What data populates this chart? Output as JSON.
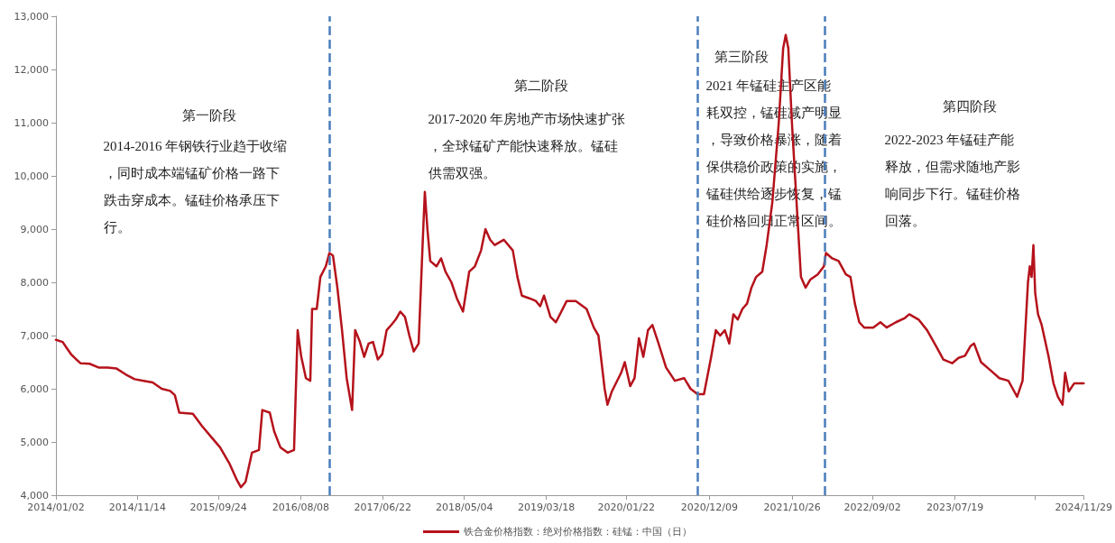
{
  "chart_data": {
    "type": "line",
    "legend": "bottom",
    "grid": false,
    "marker": "none",
    "line_style": "solid",
    "xlim": [
      "2014-01-02",
      "2024-11-29"
    ],
    "xticks": [
      {
        "value": "2014-01-02",
        "label": "2014/01/02"
      },
      {
        "value": "2014-11-14",
        "label": "2014/11/14"
      },
      {
        "value": "2015-09-24",
        "label": "2015/09/24"
      },
      {
        "value": "2016-08-08",
        "label": "2016/08/08"
      },
      {
        "value": "2017-06-22",
        "label": "2017/06/22"
      },
      {
        "value": "2018-05-04",
        "label": "2018/05/04"
      },
      {
        "value": "2019-03-18",
        "label": "2019/03/18"
      },
      {
        "value": "2020-01-22",
        "label": "2020/01/22"
      },
      {
        "value": "2020-12-09",
        "label": "2020/12/09"
      },
      {
        "value": "2021-10-26",
        "label": "2021/10/26"
      },
      {
        "value": "2022-09-02",
        "label": "2022/09/02"
      },
      {
        "value": "2023-07-19",
        "label": "2023/07/19"
      },
      {
        "value": "2024-05-25",
        "label": null
      },
      {
        "value": "2024-11-29",
        "label": "2024/11/29"
      }
    ],
    "ylim": [
      4000,
      13000
    ],
    "yticks": [
      {
        "value": 4000,
        "label": "4,000"
      },
      {
        "value": 5000,
        "label": "5,000"
      },
      {
        "value": 6000,
        "label": "6,000"
      },
      {
        "value": 7000,
        "label": "7,000"
      },
      {
        "value": 8000,
        "label": "8,000"
      },
      {
        "value": 9000,
        "label": "9,000"
      },
      {
        "value": 10000,
        "label": "10,000"
      },
      {
        "value": 11000,
        "label": "11,000"
      },
      {
        "value": 12000,
        "label": "12,000"
      },
      {
        "value": 13000,
        "label": "13,000"
      }
    ],
    "ref_lines": [
      {
        "axis": "x",
        "value": "2016-11-27",
        "color": "#4a7ebb",
        "line_style": "dashed"
      },
      {
        "axis": "x",
        "value": "2020-10-24",
        "color": "#4a7ebb",
        "line_style": "dashed"
      },
      {
        "axis": "x",
        "value": "2022-03-02",
        "color": "#4a7ebb",
        "line_style": "dashed"
      }
    ],
    "annotations": [
      "第一阶段",
      "2014-2016 年钢铁行业趋于收缩，同时成本端锰矿价格一路下跌击穿成本。锰硅价格承压下行。",
      "第二阶段",
      "2017-2020 年房地产市场快速扩张，全球锰矿产能快速释放。锰硅供需双强。",
      "第三阶段",
      "2021 年锰硅主产区能耗双控，锰硅减产明显，导致价格暴涨，随着保供稳价政策的实施，锰硅供给逐步恢复，锰硅价格回归正常区间。",
      "第四阶段",
      "2022-2023 年锰硅产能释放，但需求随地产影响同步下行。锰硅价格回落。"
    ],
    "series": [
      {
        "name": "铁合金价格指数：绝对价格指数：硅锰：中国（日）",
        "color": "#b5121b",
        "x": [
          "2014-01-02",
          "2014-01-28",
          "2014-02-15",
          "2014-03-03",
          "2014-03-20",
          "2014-04-07",
          "2014-05-12",
          "2014-06-16",
          "2014-07-21",
          "2014-08-25",
          "2014-09-29",
          "2014-11-03",
          "2014-12-08",
          "2015-01-12",
          "2015-02-16",
          "2015-03-21",
          "2015-04-08",
          "2015-04-25",
          "2015-06-17",
          "2015-07-22",
          "2015-08-26",
          "2015-09-30",
          "2015-11-05",
          "2015-12-03",
          "2015-12-20",
          "2016-01-07",
          "2016-02-01",
          "2016-02-28",
          "2016-03-12",
          "2016-04-10",
          "2016-04-27",
          "2016-05-21",
          "2016-06-18",
          "2016-07-13",
          "2016-07-27",
          "2016-08-10",
          "2016-08-28",
          "2016-09-14",
          "2016-09-21",
          "2016-10-09",
          "2016-10-23",
          "2016-11-13",
          "2016-11-27",
          "2016-12-11",
          "2016-12-28",
          "2017-01-15",
          "2017-02-02",
          "2017-02-23",
          "2017-03-07",
          "2017-03-24",
          "2017-04-11",
          "2017-04-28",
          "2017-05-15",
          "2017-06-03",
          "2017-06-20",
          "2017-07-07",
          "2017-07-25",
          "2017-08-11",
          "2017-08-29",
          "2017-09-16",
          "2017-10-03",
          "2017-10-20",
          "2017-11-08",
          "2017-11-25",
          "2017-12-02",
          "2017-12-12",
          "2017-12-23",
          "2018-01-16",
          "2018-02-03",
          "2018-02-20",
          "2018-03-15",
          "2018-04-05",
          "2018-04-29",
          "2018-05-23",
          "2018-06-14",
          "2018-07-08",
          "2018-07-25",
          "2018-08-12",
          "2018-08-30",
          "2018-10-04",
          "2018-11-08",
          "2018-11-26",
          "2018-12-13",
          "2019-01-11",
          "2019-02-05",
          "2019-02-22",
          "2019-03-09",
          "2019-04-03",
          "2019-04-24",
          "2019-06-05",
          "2019-07-10",
          "2019-08-21",
          "2019-09-18",
          "2019-10-06",
          "2019-10-30",
          "2019-11-10",
          "2019-11-27",
          "2020-01-02",
          "2020-01-16",
          "2020-02-06",
          "2020-02-23",
          "2020-03-11",
          "2020-03-28",
          "2020-04-15",
          "2020-05-02",
          "2020-05-26",
          "2020-06-24",
          "2020-07-28",
          "2020-09-02",
          "2020-09-27",
          "2020-10-24",
          "2020-11-18",
          "2020-12-16",
          "2021-01-03",
          "2021-01-20",
          "2021-02-07",
          "2021-02-24",
          "2021-03-12",
          "2021-03-29",
          "2021-04-16",
          "2021-05-04",
          "2021-05-21",
          "2021-06-08",
          "2021-07-02",
          "2021-07-19",
          "2021-08-10",
          "2021-09-04",
          "2021-09-21",
          "2021-10-01",
          "2021-10-11",
          "2021-10-25",
          "2021-11-12",
          "2021-11-29",
          "2021-12-17",
          "2022-01-04",
          "2022-02-02",
          "2022-02-26",
          "2022-03-06",
          "2022-03-30",
          "2022-04-24",
          "2022-05-22",
          "2022-06-09",
          "2022-06-26",
          "2022-07-13",
          "2022-08-01",
          "2022-09-05",
          "2022-10-03",
          "2022-10-27",
          "2022-12-02",
          "2023-01-06",
          "2023-01-23",
          "2023-02-28",
          "2023-04-02",
          "2023-05-07",
          "2023-06-04",
          "2023-07-08",
          "2023-08-02",
          "2023-08-27",
          "2023-09-17",
          "2023-10-01",
          "2023-10-28",
          "2023-12-03",
          "2024-01-07",
          "2024-02-11",
          "2024-02-28",
          "2024-03-16",
          "2024-04-06",
          "2024-04-27",
          "2024-05-04",
          "2024-05-11",
          "2024-05-18",
          "2024-05-25",
          "2024-06-05",
          "2024-06-19",
          "2024-07-16",
          "2024-08-04",
          "2024-08-21",
          "2024-09-08",
          "2024-09-18",
          "2024-10-02",
          "2024-10-23",
          "2024-11-16",
          "2024-11-29"
        ],
        "values": [
          6920,
          6880,
          6750,
          6640,
          6560,
          6480,
          6470,
          6400,
          6400,
          6380,
          6270,
          6180,
          6150,
          6120,
          6000,
          5960,
          5880,
          5550,
          5530,
          5300,
          5100,
          4900,
          4600,
          4300,
          4150,
          4250,
          4800,
          4850,
          5600,
          5550,
          5200,
          4900,
          4800,
          4850,
          7100,
          6600,
          6200,
          6150,
          7500,
          7500,
          8100,
          8300,
          8550,
          8500,
          7900,
          7100,
          6200,
          5600,
          7100,
          6900,
          6600,
          6850,
          6880,
          6550,
          6650,
          7100,
          7200,
          7300,
          7450,
          7350,
          7000,
          6700,
          6850,
          8900,
          9700,
          9000,
          8400,
          8300,
          8450,
          8200,
          8000,
          7700,
          7450,
          8200,
          8300,
          8600,
          9000,
          8800,
          8700,
          8800,
          8600,
          8100,
          7750,
          7700,
          7650,
          7550,
          7750,
          7350,
          7250,
          7650,
          7650,
          7500,
          7150,
          7000,
          6000,
          5700,
          5950,
          6300,
          6500,
          6050,
          6200,
          6950,
          6600,
          7100,
          7200,
          6850,
          6400,
          6150,
          6200,
          6000,
          5900,
          5900,
          6600,
          7100,
          7000,
          7100,
          6850,
          7400,
          7300,
          7500,
          7600,
          7900,
          8100,
          8200,
          8700,
          9500,
          11000,
          12400,
          12650,
          12400,
          11000,
          9500,
          8100,
          7900,
          8050,
          8150,
          8300,
          8550,
          8450,
          8400,
          8150,
          8100,
          7600,
          7250,
          7150,
          7150,
          7250,
          7150,
          7250,
          7330,
          7400,
          7300,
          7100,
          6800,
          6550,
          6480,
          6580,
          6620,
          6800,
          6850,
          6500,
          6350,
          6200,
          6150,
          6000,
          5850,
          6150,
          8000,
          8300,
          8100,
          8700,
          7800,
          7400,
          7200,
          6600,
          6100,
          5850,
          5700,
          6300,
          5950,
          6100,
          6100,
          6100
        ]
      }
    ]
  }
}
